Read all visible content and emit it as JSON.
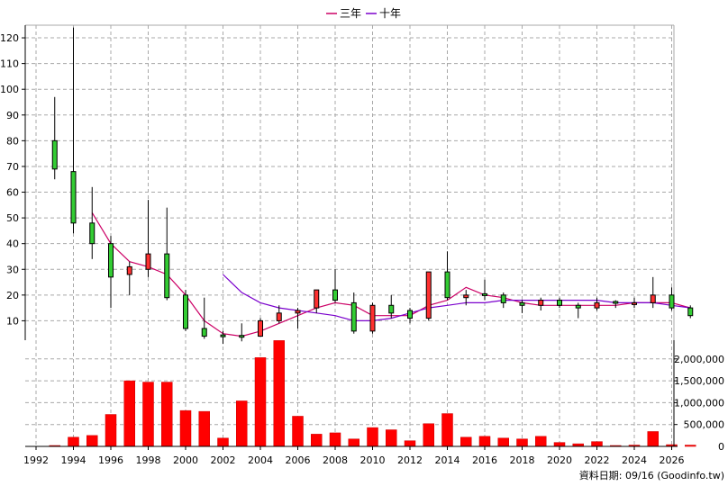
{
  "legend": [
    {
      "label": "三年",
      "color": "#cc0066"
    },
    {
      "label": "十年",
      "color": "#7a00cc"
    }
  ],
  "credit": "資料日期: 09/16  (Goodinfo.tw)",
  "colors": {
    "up": "#ff3030",
    "down": "#33cc33",
    "bar": "#ff0000",
    "bar_edge": "#cc0000",
    "ma3": "#cc0066",
    "ma10": "#7a00cc"
  },
  "chart_data": {
    "type": "candlestick+bar",
    "price_axis": {
      "min": 0,
      "max": 125,
      "ticks": [
        10,
        20,
        30,
        40,
        50,
        60,
        70,
        80,
        90,
        100,
        110,
        120
      ],
      "side": "left"
    },
    "volume_axis": {
      "min": 0,
      "max": 2500000,
      "ticks": [
        "0",
        "500,000",
        "1,000,000",
        "1,500,000",
        "2,000,000"
      ],
      "tick_values": [
        0,
        500000,
        1000000,
        1500000,
        2000000
      ],
      "side": "right"
    },
    "x_axis": {
      "range": [
        1992,
        2026
      ],
      "tick_labels": [
        "1992",
        "1994",
        "1996",
        "1998",
        "2000",
        "2002",
        "2004",
        "2006",
        "2008",
        "2010",
        "2012",
        "2014",
        "2016",
        "2018",
        "2020",
        "2022",
        "2024",
        "2026"
      ],
      "tick_values": [
        1992,
        1994,
        1996,
        1998,
        2000,
        2002,
        2004,
        2006,
        2008,
        2010,
        2012,
        2014,
        2016,
        2018,
        2020,
        2022,
        2024,
        2026
      ]
    },
    "grid": true,
    "candles": [
      {
        "year": 1993,
        "open": 69,
        "close": 80,
        "high": 97,
        "low": 65
      },
      {
        "year": 1994,
        "open": 48,
        "close": 68,
        "high": 124,
        "low": 44
      },
      {
        "year": 1995,
        "open": 40,
        "close": 48,
        "high": 62,
        "low": 34
      },
      {
        "year": 1996,
        "open": 27,
        "close": 40,
        "high": 43,
        "low": 15
      },
      {
        "year": 1997,
        "open": 31,
        "close": 28,
        "high": 33,
        "low": 20
      },
      {
        "year": 1998,
        "open": 36,
        "close": 30,
        "high": 57,
        "low": 27
      },
      {
        "year": 1999,
        "open": 19,
        "close": 36,
        "high": 54,
        "low": 18
      },
      {
        "year": 2000,
        "open": 7,
        "close": 20,
        "high": 22,
        "low": 6
      },
      {
        "year": 2001,
        "open": 4,
        "close": 7,
        "high": 19,
        "low": 3
      },
      {
        "year": 2002,
        "open": 4,
        "close": 4.5,
        "high": 6,
        "low": 1
      },
      {
        "year": 2003,
        "open": 4,
        "close": 4.3,
        "high": 9,
        "low": 2
      },
      {
        "year": 2004,
        "open": 10,
        "close": 4,
        "high": 11,
        "low": 4
      },
      {
        "year": 2005,
        "open": 13,
        "close": 10,
        "high": 16,
        "low": 9
      },
      {
        "year": 2006,
        "open": 14,
        "close": 13,
        "high": 15,
        "low": 7
      },
      {
        "year": 2007,
        "open": 22,
        "close": 15,
        "high": 22,
        "low": 13
      },
      {
        "year": 2008,
        "open": 18,
        "close": 22,
        "high": 30,
        "low": 17
      },
      {
        "year": 2009,
        "open": 6,
        "close": 17,
        "high": 21,
        "low": 5
      },
      {
        "year": 2010,
        "open": 16,
        "close": 6,
        "high": 17,
        "low": 5
      },
      {
        "year": 2011,
        "open": 13,
        "close": 16,
        "high": 20,
        "low": 11
      },
      {
        "year": 2012,
        "open": 11,
        "close": 14,
        "high": 15,
        "low": 9
      },
      {
        "year": 2013,
        "open": 29,
        "close": 11,
        "high": 29,
        "low": 10
      },
      {
        "year": 2014,
        "open": 19,
        "close": 29,
        "high": 37,
        "low": 18
      },
      {
        "year": 2015,
        "open": 20,
        "close": 19,
        "high": 22,
        "low": 16
      },
      {
        "year": 2016,
        "open": 20,
        "close": 20.5,
        "high": 26,
        "low": 18
      },
      {
        "year": 2017,
        "open": 17,
        "close": 20,
        "high": 21,
        "low": 15
      },
      {
        "year": 2018,
        "open": 16,
        "close": 17,
        "high": 18,
        "low": 13
      },
      {
        "year": 2019,
        "open": 18,
        "close": 16,
        "high": 19,
        "low": 14
      },
      {
        "year": 2020,
        "open": 16,
        "close": 18,
        "high": 19,
        "low": 15
      },
      {
        "year": 2021,
        "open": 15,
        "close": 16,
        "high": 17,
        "low": 11
      },
      {
        "year": 2022,
        "open": 17,
        "close": 15,
        "high": 19,
        "low": 14
      },
      {
        "year": 2023,
        "open": 17,
        "close": 17.5,
        "high": 18,
        "low": 15
      },
      {
        "year": 2024,
        "open": 17,
        "close": 16.5,
        "high": 19,
        "low": 15
      },
      {
        "year": 2025,
        "open": 20,
        "close": 17,
        "high": 27,
        "low": 15
      },
      {
        "year": 2026,
        "open": 15,
        "close": 20,
        "high": 23,
        "low": 14
      },
      {
        "year": 2027,
        "open": 12,
        "close": 15,
        "high": 16,
        "low": 11
      }
    ],
    "volume": [
      {
        "year": 1993,
        "value": 10000
      },
      {
        "year": 1994,
        "value": 210000
      },
      {
        "year": 1995,
        "value": 250000
      },
      {
        "year": 1996,
        "value": 730000
      },
      {
        "year": 1997,
        "value": 1500000
      },
      {
        "year": 1998,
        "value": 1470000
      },
      {
        "year": 1999,
        "value": 1470000
      },
      {
        "year": 2000,
        "value": 820000
      },
      {
        "year": 2001,
        "value": 800000
      },
      {
        "year": 2002,
        "value": 190000
      },
      {
        "year": 2003,
        "value": 1040000
      },
      {
        "year": 2004,
        "value": 2030000
      },
      {
        "year": 2005,
        "value": 2420000
      },
      {
        "year": 2006,
        "value": 690000
      },
      {
        "year": 2007,
        "value": 280000
      },
      {
        "year": 2008,
        "value": 310000
      },
      {
        "year": 2009,
        "value": 170000
      },
      {
        "year": 2010,
        "value": 430000
      },
      {
        "year": 2011,
        "value": 380000
      },
      {
        "year": 2012,
        "value": 130000
      },
      {
        "year": 2013,
        "value": 520000
      },
      {
        "year": 2014,
        "value": 750000
      },
      {
        "year": 2015,
        "value": 210000
      },
      {
        "year": 2016,
        "value": 230000
      },
      {
        "year": 2017,
        "value": 190000
      },
      {
        "year": 2018,
        "value": 170000
      },
      {
        "year": 2019,
        "value": 230000
      },
      {
        "year": 2020,
        "value": 90000
      },
      {
        "year": 2021,
        "value": 60000
      },
      {
        "year": 2022,
        "value": 110000
      },
      {
        "year": 2023,
        "value": 10000
      },
      {
        "year": 2024,
        "value": 30000
      },
      {
        "year": 2025,
        "value": 340000
      },
      {
        "year": 2026,
        "value": 40000
      },
      {
        "year": 2027,
        "value": 30000
      }
    ],
    "series": [
      {
        "name": "三年",
        "points": [
          [
            1995,
            52
          ],
          [
            1996,
            40
          ],
          [
            1997,
            33
          ],
          [
            1998,
            31
          ],
          [
            1999,
            28
          ],
          [
            2000,
            20
          ],
          [
            2001,
            10
          ],
          [
            2002,
            5
          ],
          [
            2003,
            4
          ],
          [
            2004,
            6
          ],
          [
            2005,
            9
          ],
          [
            2006,
            12
          ],
          [
            2007,
            15
          ],
          [
            2008,
            17
          ],
          [
            2009,
            16
          ],
          [
            2010,
            12
          ],
          [
            2011,
            12
          ],
          [
            2012,
            12
          ],
          [
            2013,
            16
          ],
          [
            2014,
            18
          ],
          [
            2015,
            23
          ],
          [
            2016,
            20
          ],
          [
            2017,
            19
          ],
          [
            2018,
            17
          ],
          [
            2019,
            16
          ],
          [
            2020,
            16
          ],
          [
            2021,
            16
          ],
          [
            2022,
            16
          ],
          [
            2023,
            16
          ],
          [
            2024,
            17
          ],
          [
            2025,
            17
          ],
          [
            2026,
            17
          ],
          [
            2027,
            15
          ]
        ]
      },
      {
        "name": "十年",
        "points": [
          [
            2002,
            28
          ],
          [
            2003,
            21
          ],
          [
            2004,
            17
          ],
          [
            2005,
            15
          ],
          [
            2006,
            14
          ],
          [
            2007,
            13
          ],
          [
            2008,
            12
          ],
          [
            2009,
            10
          ],
          [
            2010,
            10
          ],
          [
            2011,
            11
          ],
          [
            2012,
            13
          ],
          [
            2013,
            15
          ],
          [
            2014,
            16
          ],
          [
            2015,
            17
          ],
          [
            2016,
            17
          ],
          [
            2017,
            18
          ],
          [
            2018,
            18
          ],
          [
            2019,
            18
          ],
          [
            2020,
            18
          ],
          [
            2021,
            18
          ],
          [
            2022,
            18
          ],
          [
            2023,
            17
          ],
          [
            2024,
            17
          ],
          [
            2025,
            17
          ],
          [
            2026,
            16
          ],
          [
            2027,
            15
          ]
        ]
      }
    ]
  }
}
